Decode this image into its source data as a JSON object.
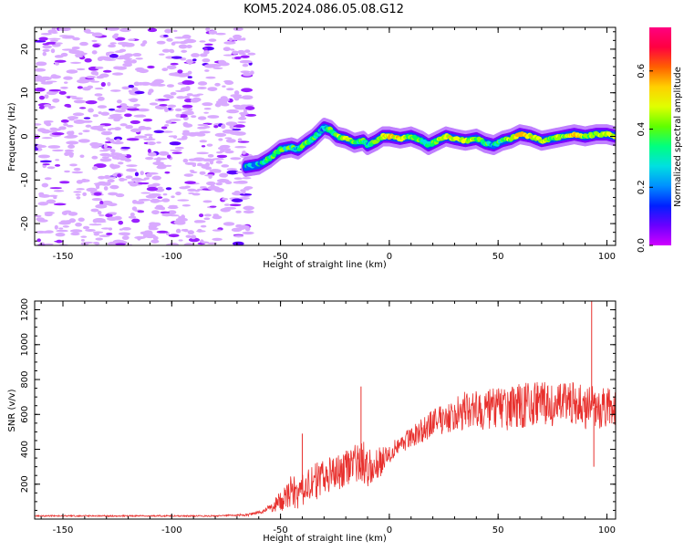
{
  "title": "KOM5.2024.086.05.08.G12",
  "chart_data": [
    {
      "type": "heatmap",
      "xlabel": "Height of straight line (km)",
      "ylabel": "Frequency (Hz)",
      "xlim": [
        -163,
        104
      ],
      "ylim": [
        -25,
        25
      ],
      "xticks": [
        "-150",
        "-100",
        "-50",
        "0",
        "50",
        "100"
      ],
      "xtick_values": [
        -150,
        -100,
        -50,
        0,
        50,
        100
      ],
      "yticks": [
        "20",
        "10",
        "0",
        "-10",
        "-20"
      ],
      "ytick_values": [
        20,
        10,
        0,
        -10,
        -20
      ],
      "colorbar": {
        "label": "Normalized spectral amplitude",
        "range": [
          0,
          0.75
        ],
        "ticks": [
          "0.0",
          "0.2",
          "0.4",
          "0.6"
        ],
        "tick_values": [
          0.0,
          0.2,
          0.4,
          0.6
        ],
        "colors": [
          "#ffffff",
          "#d9aaff",
          "#9a20ff",
          "#3a00ff",
          "#0060ff",
          "#00e0e0",
          "#00ff60",
          "#90ff00",
          "#f0ff00",
          "#ffb000",
          "#ff4000",
          "#ff0070"
        ]
      },
      "signal_track": {
        "x": [
          -66,
          -60,
          -55,
          -50,
          -45,
          -42,
          -38,
          -35,
          -32,
          -30,
          -27,
          -24,
          -20,
          -16,
          -12,
          -10,
          -6,
          -3,
          0,
          5,
          10,
          15,
          18,
          22,
          26,
          30,
          35,
          40,
          44,
          48,
          52,
          56,
          60,
          65,
          70,
          75,
          80,
          85,
          90,
          95,
          100,
          104
        ],
        "y": [
          -7,
          -6.5,
          -5,
          -3,
          -2.5,
          -3,
          -1.5,
          -0.5,
          1,
          2,
          1.5,
          0,
          -0.5,
          -1.5,
          -1,
          -2,
          -1,
          0,
          0,
          -0.5,
          0,
          -1,
          -2,
          -1,
          0,
          -0.5,
          -1,
          -0.5,
          -1.5,
          -2,
          -1,
          -0.5,
          0.5,
          0,
          -1,
          -0.5,
          0,
          0.5,
          0,
          0.5,
          0.5,
          0
        ],
        "amplitude": [
          0.3,
          0.35,
          0.4,
          0.45,
          0.4,
          0.35,
          0.45,
          0.4,
          0.35,
          0.3,
          0.4,
          0.45,
          0.5,
          0.45,
          0.4,
          0.35,
          0.45,
          0.5,
          0.55,
          0.5,
          0.45,
          0.4,
          0.35,
          0.45,
          0.5,
          0.55,
          0.5,
          0.45,
          0.4,
          0.35,
          0.4,
          0.5,
          0.6,
          0.55,
          0.5,
          0.45,
          0.5,
          0.55,
          0.5,
          0.45,
          0.5,
          0.5
        ]
      },
      "noise_region_x": [
        -163,
        -63
      ]
    },
    {
      "type": "line",
      "xlabel": "Height of straight line (km)",
      "ylabel": "SNR (v/v)",
      "xlim": [
        -163,
        104
      ],
      "ylim": [
        0,
        1250
      ],
      "xticks": [
        "-150",
        "-100",
        "-50",
        "0",
        "50",
        "100"
      ],
      "xtick_values": [
        -150,
        -100,
        -50,
        0,
        50,
        100
      ],
      "yticks": [
        "200",
        "400",
        "600",
        "800",
        "1000",
        "1200"
      ],
      "ytick_values": [
        200,
        400,
        600,
        800,
        1000,
        1200
      ],
      "series": [
        {
          "color": "#e8302d",
          "x": [
            -163,
            -140,
            -120,
            -100,
            -80,
            -65,
            -58,
            -54,
            -50,
            -47,
            -45,
            -42,
            -40,
            -38,
            -35,
            -30,
            -25,
            -20,
            -15,
            -12,
            -10,
            -5,
            0,
            5,
            10,
            15,
            20,
            25,
            30,
            35,
            40,
            45,
            50,
            55,
            60,
            65,
            70,
            75,
            80,
            85,
            90,
            93,
            95,
            98,
            104
          ],
          "y": [
            18,
            18,
            18,
            18,
            18,
            25,
            45,
            70,
            100,
            130,
            160,
            140,
            170,
            190,
            210,
            240,
            270,
            300,
            320,
            330,
            300,
            320,
            380,
            430,
            470,
            510,
            550,
            580,
            600,
            620,
            630,
            620,
            640,
            630,
            650,
            660,
            660,
            650,
            660,
            670,
            640,
            650,
            630,
            640,
            640
          ]
        }
      ],
      "spikes": {
        "x": [
          -40,
          -13,
          93,
          94
        ],
        "y": [
          490,
          760,
          1250,
          300
        ]
      },
      "noise_amplitude": [
        0,
        0,
        0,
        0,
        0,
        5,
        10,
        30,
        60,
        80,
        90,
        100,
        100,
        100,
        100,
        110,
        110,
        110,
        110,
        120,
        110,
        90,
        60,
        50,
        60,
        70,
        80,
        90,
        100,
        110,
        120,
        120,
        120,
        120,
        130,
        130,
        130,
        120,
        120,
        120,
        130,
        120,
        120,
        120,
        100
      ]
    }
  ]
}
